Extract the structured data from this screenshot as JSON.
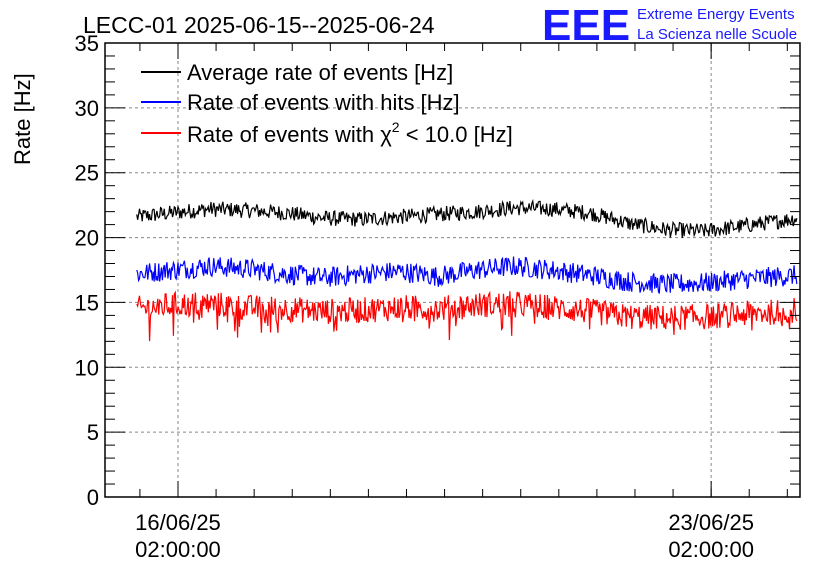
{
  "chart_data": {
    "type": "line",
    "title": "LECC-01 2025-06-15--2025-06-24",
    "ylabel": "Rate [Hz]",
    "xlabel": "",
    "ylim": [
      0,
      35
    ],
    "yticks": [
      0,
      5,
      10,
      15,
      20,
      25,
      30,
      35
    ],
    "xlim": [
      "2025-06-15 03:00:00",
      "2025-06-24 06:00:00"
    ],
    "xticks": [
      {
        "date": "2025-06-16 02:00:00",
        "label_date": "16/06/25",
        "label_time": "02:00:00"
      },
      {
        "date": "2025-06-23 02:00:00",
        "label_date": "23/06/25",
        "label_time": "02:00:00"
      }
    ],
    "grid": true,
    "legend_position": "top-left",
    "series": [
      {
        "name": "Average rate of events [Hz]",
        "color": "#000000",
        "noise": 0.6,
        "x": [
          "2025-06-15 13:00",
          "2025-06-16 00:00",
          "2025-06-16 12:00",
          "2025-06-17 00:00",
          "2025-06-17 12:00",
          "2025-06-18 00:00",
          "2025-06-18 12:00",
          "2025-06-19 00:00",
          "2025-06-19 12:00",
          "2025-06-20 00:00",
          "2025-06-20 12:00",
          "2025-06-21 00:00",
          "2025-06-21 12:00",
          "2025-06-22 00:00",
          "2025-06-22 12:00",
          "2025-06-23 00:00",
          "2025-06-23 12:00",
          "2025-06-24 00:00",
          "2025-06-24 05:00"
        ],
        "y": [
          21.6,
          21.9,
          22.2,
          22.1,
          21.9,
          21.5,
          21.4,
          21.6,
          21.8,
          22.0,
          22.3,
          22.2,
          21.9,
          21.1,
          20.6,
          20.5,
          20.9,
          21.3,
          21.5
        ]
      },
      {
        "name": "Rate of events with hits [Hz]",
        "color": "#0000ff",
        "noise": 0.8,
        "x": [
          "2025-06-15 13:00",
          "2025-06-16 00:00",
          "2025-06-16 12:00",
          "2025-06-17 00:00",
          "2025-06-17 12:00",
          "2025-06-18 00:00",
          "2025-06-18 12:00",
          "2025-06-19 00:00",
          "2025-06-19 12:00",
          "2025-06-20 00:00",
          "2025-06-20 12:00",
          "2025-06-21 00:00",
          "2025-06-21 12:00",
          "2025-06-22 00:00",
          "2025-06-22 12:00",
          "2025-06-23 00:00",
          "2025-06-23 12:00",
          "2025-06-24 00:00",
          "2025-06-24 05:00"
        ],
        "y": [
          17.2,
          17.5,
          17.8,
          17.6,
          17.2,
          16.9,
          17.2,
          17.4,
          17.0,
          17.5,
          17.8,
          17.5,
          17.1,
          16.6,
          16.4,
          16.5,
          16.8,
          17.0,
          17.1
        ]
      },
      {
        "name": "Rate of events with χ² < 10.0 [Hz]",
        "color": "#ff0000",
        "noise": 1.0,
        "x": [
          "2025-06-15 13:00",
          "2025-06-16 00:00",
          "2025-06-16 12:00",
          "2025-06-17 00:00",
          "2025-06-17 12:00",
          "2025-06-18 00:00",
          "2025-06-18 12:00",
          "2025-06-19 00:00",
          "2025-06-19 12:00",
          "2025-06-20 00:00",
          "2025-06-20 12:00",
          "2025-06-21 00:00",
          "2025-06-21 12:00",
          "2025-06-22 00:00",
          "2025-06-22 12:00",
          "2025-06-23 00:00",
          "2025-06-23 12:00",
          "2025-06-24 00:00",
          "2025-06-24 05:00"
        ],
        "y": [
          14.5,
          14.8,
          14.9,
          14.6,
          14.5,
          14.3,
          14.4,
          14.6,
          14.5,
          14.8,
          14.9,
          14.6,
          14.3,
          13.9,
          13.8,
          13.9,
          14.1,
          14.3,
          14.4
        ]
      }
    ]
  },
  "legend": {
    "items": [
      {
        "text": "Average rate of events [Hz]"
      },
      {
        "prefix": "Rate of events with ",
        "greek": "χ",
        "sup": "2",
        "suffix": " < 10.0 [Hz]"
      }
    ],
    "hits_label": "Rate of events with hits [Hz]"
  },
  "logo": {
    "mark": "EEE",
    "line1": "Extreme Energy Events",
    "line2": "La Scienza nelle Scuole",
    "color": "#1a1aff"
  }
}
